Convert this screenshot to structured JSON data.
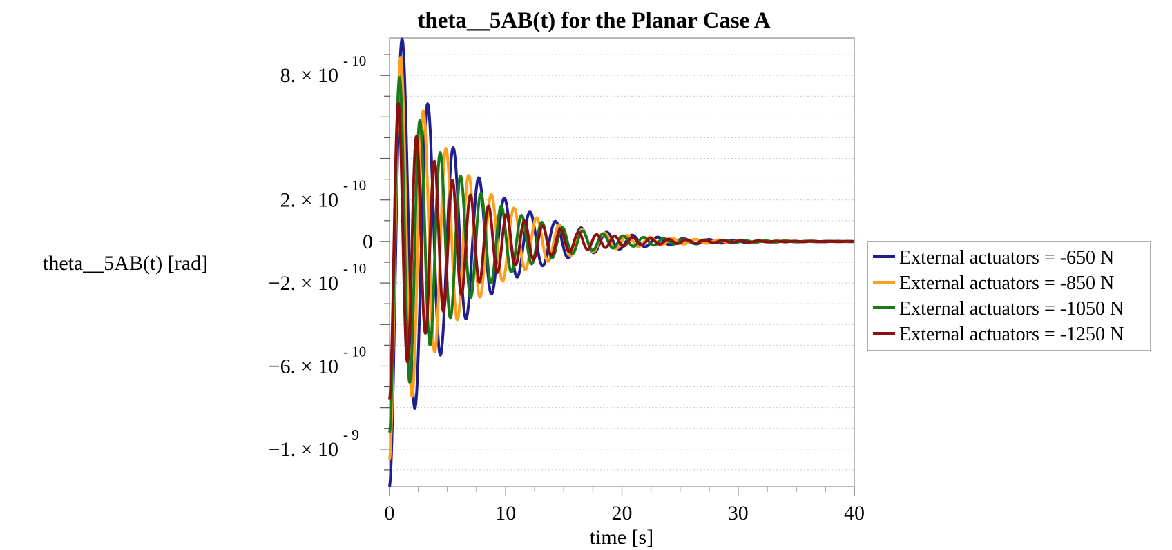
{
  "chart_data": {
    "type": "line",
    "title": "theta__5AB(t) for the Planar Case A",
    "xlabel": "time [s]",
    "ylabel": "theta__5AB(t) [rad]",
    "xlim": [
      0,
      40
    ],
    "ylim": [
      -1.18e-09,
      9.8e-10
    ],
    "x_ticks": [
      {
        "value": 0,
        "label": "0"
      },
      {
        "value": 10,
        "label": "10"
      },
      {
        "value": 20,
        "label": "20"
      },
      {
        "value": 30,
        "label": "30"
      },
      {
        "value": 40,
        "label": "40"
      }
    ],
    "y_ticks": [
      {
        "value": 8e-10,
        "mantissa": "8. × 10",
        "exponent": "- 10"
      },
      {
        "value": 2e-10,
        "mantissa": "2. × 10",
        "exponent": "- 10"
      },
      {
        "value": 0,
        "mantissa": "0",
        "exponent": ""
      },
      {
        "value": -2e-10,
        "mantissa": "−2. × 10",
        "exponent": "- 10"
      },
      {
        "value": -6e-10,
        "mantissa": "−6. × 10",
        "exponent": "- 10"
      },
      {
        "value": -1e-09,
        "mantissa": "−1. × 10",
        "exponent": "- 9"
      }
    ],
    "grid": "horizontal dotted",
    "legend_position": "right",
    "series": [
      {
        "name": "External actuators = -650 N",
        "color": "#1f1f8f",
        "amplitude": -1.18e-09,
        "period": 2.2,
        "decay": 0.175
      },
      {
        "name": "External actuators = -850 N",
        "color": "#ff9f1c",
        "amplitude": -1.05e-09,
        "period": 1.95,
        "decay": 0.175
      },
      {
        "name": "External actuators = -1050 N",
        "color": "#1a7a1a",
        "amplitude": -9.2e-10,
        "period": 1.75,
        "decay": 0.175
      },
      {
        "name": "External actuators = -1250 N",
        "color": "#8b1010",
        "amplitude": -7.6e-10,
        "period": 1.55,
        "decay": 0.175
      }
    ]
  }
}
